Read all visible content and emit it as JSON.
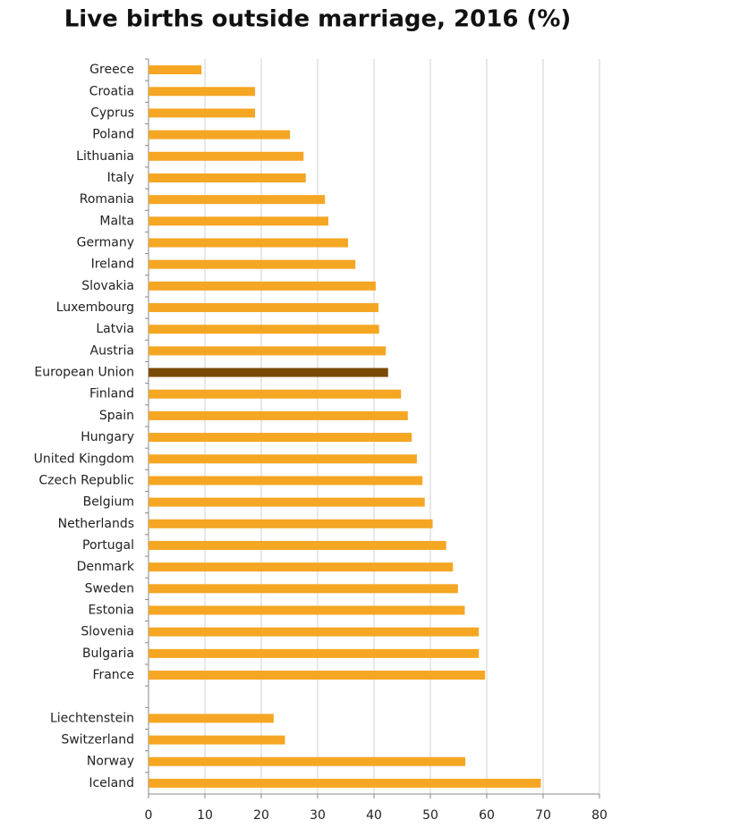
{
  "chart_data": {
    "type": "hbar",
    "title": "Live births outside marriage, 2016 (%)",
    "categories": [
      "Greece",
      "Croatia",
      "Cyprus",
      "Poland",
      "Lithuania",
      "Italy",
      "Romania",
      "Malta",
      "Germany",
      "Ireland",
      "Slovakia",
      "Luxembourg",
      "Latvia",
      "Austria",
      "European Union",
      "Finland",
      "Spain",
      "Hungary",
      "United Kingdom",
      "Czech Republic",
      "Belgium",
      "Netherlands",
      "Portugal",
      "Denmark",
      "Sweden",
      "Estonia",
      "Slovenia",
      "Bulgaria",
      "France",
      null,
      "Liechtenstein",
      "Switzerland",
      "Norway",
      "Iceland"
    ],
    "values": [
      9.4,
      18.9,
      18.9,
      25.1,
      27.5,
      27.9,
      31.3,
      31.9,
      35.4,
      36.7,
      40.3,
      40.8,
      40.9,
      42.1,
      42.5,
      44.8,
      46,
      46.7,
      47.6,
      48.6,
      49,
      50.4,
      52.8,
      54,
      54.9,
      56.1,
      58.6,
      58.6,
      59.7,
      null,
      22.2,
      24.2,
      56.2,
      69.6
    ],
    "colors": [
      "#f5a623",
      "#f5a623",
      "#f5a623",
      "#f5a623",
      "#f5a623",
      "#f5a623",
      "#f5a623",
      "#f5a623",
      "#f5a623",
      "#f5a623",
      "#f5a623",
      "#f5a623",
      "#f5a623",
      "#f5a623",
      "#7a4a06",
      "#f5a623",
      "#f5a623",
      "#f5a623",
      "#f5a623",
      "#f5a623",
      "#f5a623",
      "#f5a623",
      "#f5a623",
      "#f5a623",
      "#f5a623",
      "#f5a623",
      "#f5a623",
      "#f5a623",
      "#f5a623",
      null,
      "#f5a623",
      "#f5a623",
      "#f5a623",
      "#f5a623"
    ],
    "xlim": [
      0,
      80
    ],
    "xticks": [
      0,
      10,
      20,
      30,
      40,
      50,
      60,
      70,
      80
    ],
    "grid": true
  }
}
